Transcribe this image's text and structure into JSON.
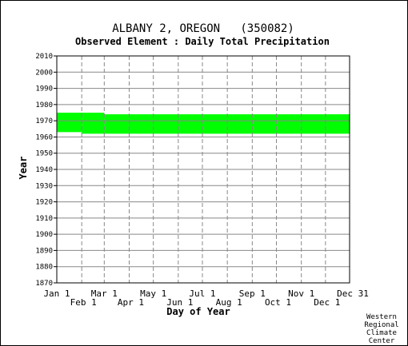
{
  "chart_data": {
    "type": "area",
    "title": "ALBANY 2, OREGON   (350082)",
    "subtitle": "Observed Element : Daily Total Precipitation",
    "xlabel": "Day of Year",
    "ylabel": "Year",
    "ylim": [
      1870,
      2010
    ],
    "yticks": [
      1870,
      1880,
      1890,
      1900,
      1910,
      1920,
      1930,
      1940,
      1950,
      1960,
      1970,
      1980,
      1990,
      2000,
      2010
    ],
    "xlim": [
      1,
      365
    ],
    "xticks_upper": [
      {
        "label": "Jan 1",
        "day": 1
      },
      {
        "label": "Mar 1",
        "day": 60
      },
      {
        "label": "May 1",
        "day": 121
      },
      {
        "label": "Jul 1",
        "day": 182
      },
      {
        "label": "Sep 1",
        "day": 244
      },
      {
        "label": "Nov 1",
        "day": 305
      },
      {
        "label": "Dec 31",
        "day": 365
      }
    ],
    "xticks_lower": [
      {
        "label": "Feb 1",
        "day": 32
      },
      {
        "label": "Apr 1",
        "day": 91
      },
      {
        "label": "Jun 1",
        "day": 152
      },
      {
        "label": "Aug 1",
        "day": 213
      },
      {
        "label": "Oct 1",
        "day": 274
      },
      {
        "label": "Dec 1",
        "day": 335
      }
    ],
    "grid": true,
    "data_color": "#00ff00",
    "series": [
      {
        "segments": [
          {
            "day_start": 1,
            "day_end": 31,
            "year_start": 1963,
            "year_end": 1975
          },
          {
            "day_start": 32,
            "day_end": 59,
            "year_start": 1962,
            "year_end": 1975
          },
          {
            "day_start": 60,
            "day_end": 365,
            "year_start": 1962,
            "year_end": 1974
          }
        ]
      }
    ]
  },
  "credit": [
    "Western",
    "Regional",
    "Climate",
    "Center"
  ]
}
